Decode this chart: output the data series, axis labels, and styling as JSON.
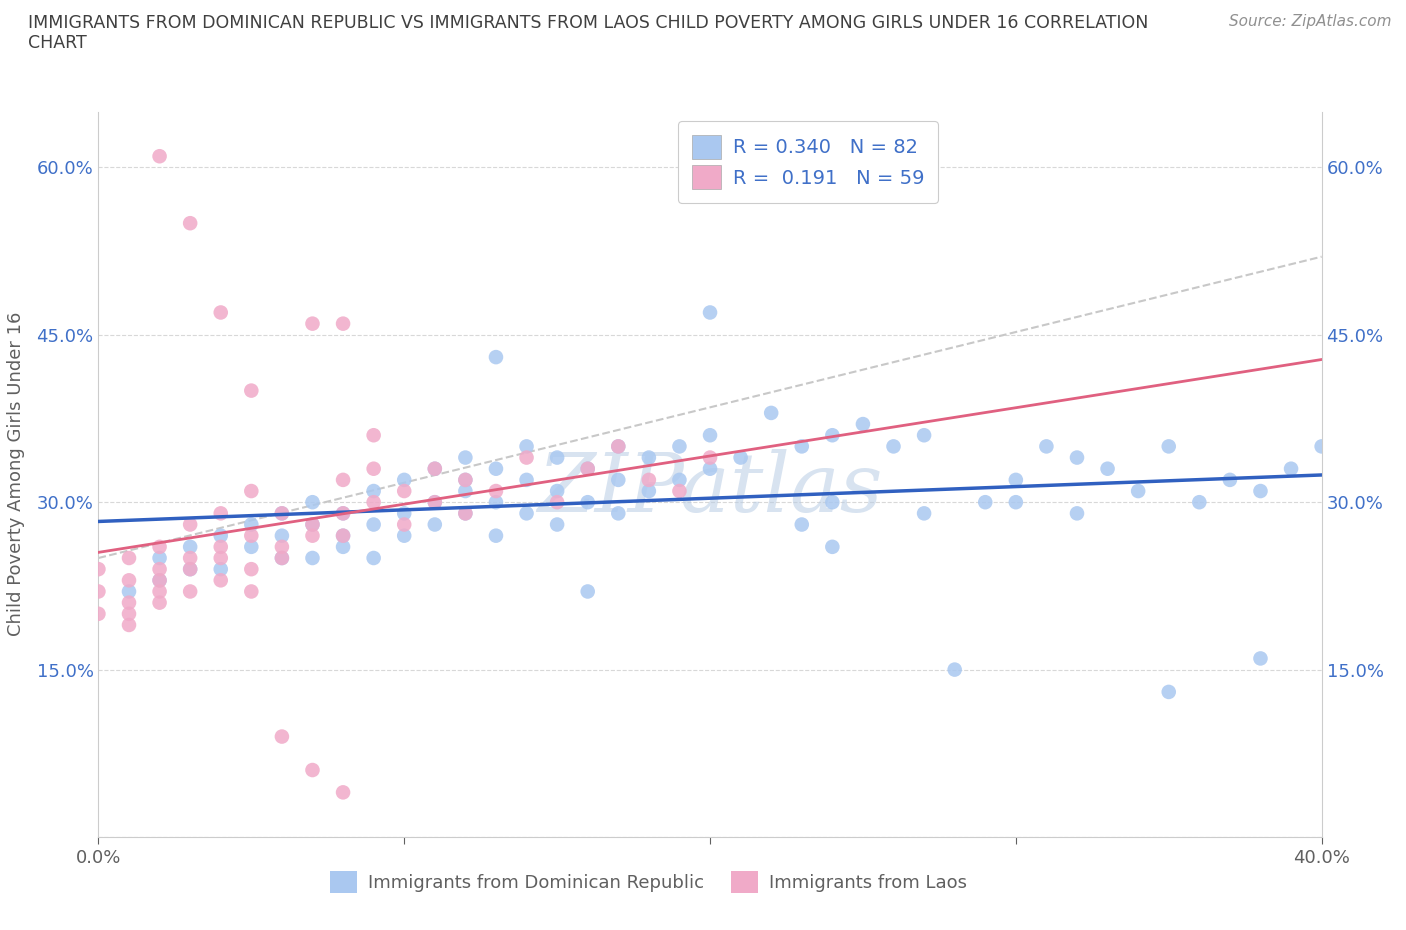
{
  "title_line1": "IMMIGRANTS FROM DOMINICAN REPUBLIC VS IMMIGRANTS FROM LAOS CHILD POVERTY AMONG GIRLS UNDER 16 CORRELATION",
  "title_line2": "CHART",
  "source": "Source: ZipAtlas.com",
  "ylabel": "Child Poverty Among Girls Under 16",
  "xlim": [
    0.0,
    0.4
  ],
  "ylim": [
    0.0,
    0.65
  ],
  "xticks": [
    0.0,
    0.1,
    0.2,
    0.3,
    0.4
  ],
  "xticklabels": [
    "0.0%",
    "",
    "",
    "",
    "40.0%"
  ],
  "yticks": [
    0.0,
    0.15,
    0.3,
    0.45,
    0.6
  ],
  "yticklabels_left": [
    "",
    "15.0%",
    "30.0%",
    "45.0%",
    "60.0%"
  ],
  "yticklabels_right": [
    "",
    "15.0%",
    "30.0%",
    "45.0%",
    "60.0%"
  ],
  "blue_R": 0.34,
  "blue_N": 82,
  "pink_R": 0.191,
  "pink_N": 59,
  "blue_color": "#aac8f0",
  "pink_color": "#f0aac8",
  "blue_line_color": "#3060c0",
  "pink_line_color": "#e06080",
  "dash_line_color": "#c8c8c8",
  "legend_text_color": "#4070c8",
  "watermark_color": "#b8cce4",
  "title_color": "#404040",
  "axis_label_color": "#606060",
  "tick_color": "#4070c8",
  "source_color": "#909090",
  "blue_scatter_x": [
    0.01,
    0.02,
    0.02,
    0.03,
    0.03,
    0.04,
    0.04,
    0.05,
    0.05,
    0.06,
    0.06,
    0.06,
    0.07,
    0.07,
    0.07,
    0.08,
    0.08,
    0.08,
    0.09,
    0.09,
    0.09,
    0.1,
    0.1,
    0.1,
    0.11,
    0.11,
    0.11,
    0.12,
    0.12,
    0.12,
    0.12,
    0.13,
    0.13,
    0.13,
    0.14,
    0.14,
    0.14,
    0.15,
    0.15,
    0.15,
    0.16,
    0.16,
    0.17,
    0.17,
    0.17,
    0.18,
    0.18,
    0.19,
    0.19,
    0.2,
    0.2,
    0.21,
    0.22,
    0.23,
    0.23,
    0.24,
    0.24,
    0.25,
    0.26,
    0.27,
    0.28,
    0.29,
    0.3,
    0.31,
    0.32,
    0.33,
    0.34,
    0.35,
    0.36,
    0.37,
    0.38,
    0.39,
    0.2,
    0.3,
    0.35,
    0.38,
    0.24,
    0.16,
    0.13,
    0.27,
    0.32,
    0.4
  ],
  "blue_scatter_y": [
    0.22,
    0.25,
    0.23,
    0.26,
    0.24,
    0.27,
    0.24,
    0.26,
    0.28,
    0.25,
    0.27,
    0.29,
    0.25,
    0.28,
    0.3,
    0.26,
    0.29,
    0.27,
    0.28,
    0.31,
    0.25,
    0.29,
    0.32,
    0.27,
    0.3,
    0.33,
    0.28,
    0.31,
    0.34,
    0.29,
    0.32,
    0.3,
    0.33,
    0.27,
    0.32,
    0.35,
    0.29,
    0.31,
    0.34,
    0.28,
    0.33,
    0.3,
    0.32,
    0.35,
    0.29,
    0.31,
    0.34,
    0.32,
    0.35,
    0.33,
    0.36,
    0.34,
    0.38,
    0.35,
    0.28,
    0.36,
    0.3,
    0.37,
    0.35,
    0.36,
    0.15,
    0.3,
    0.32,
    0.35,
    0.34,
    0.33,
    0.31,
    0.35,
    0.3,
    0.32,
    0.31,
    0.33,
    0.47,
    0.3,
    0.13,
    0.16,
    0.26,
    0.22,
    0.43,
    0.29,
    0.29,
    0.35
  ],
  "pink_scatter_x": [
    0.0,
    0.0,
    0.0,
    0.01,
    0.01,
    0.01,
    0.01,
    0.01,
    0.02,
    0.02,
    0.02,
    0.02,
    0.02,
    0.03,
    0.03,
    0.03,
    0.03,
    0.04,
    0.04,
    0.04,
    0.04,
    0.05,
    0.05,
    0.05,
    0.05,
    0.06,
    0.06,
    0.06,
    0.07,
    0.07,
    0.07,
    0.08,
    0.08,
    0.08,
    0.09,
    0.09,
    0.1,
    0.1,
    0.11,
    0.11,
    0.12,
    0.12,
    0.13,
    0.14,
    0.15,
    0.16,
    0.17,
    0.18,
    0.19,
    0.2,
    0.08,
    0.09,
    0.02,
    0.03,
    0.04,
    0.05,
    0.06,
    0.07,
    0.08
  ],
  "pink_scatter_y": [
    0.2,
    0.22,
    0.24,
    0.19,
    0.21,
    0.23,
    0.25,
    0.2,
    0.22,
    0.24,
    0.26,
    0.21,
    0.23,
    0.22,
    0.25,
    0.28,
    0.24,
    0.23,
    0.26,
    0.29,
    0.25,
    0.24,
    0.27,
    0.22,
    0.31,
    0.26,
    0.29,
    0.25,
    0.28,
    0.46,
    0.27,
    0.29,
    0.32,
    0.27,
    0.3,
    0.33,
    0.28,
    0.31,
    0.3,
    0.33,
    0.29,
    0.32,
    0.31,
    0.34,
    0.3,
    0.33,
    0.35,
    0.32,
    0.31,
    0.34,
    0.46,
    0.36,
    0.61,
    0.55,
    0.47,
    0.4,
    0.09,
    0.06,
    0.04
  ]
}
